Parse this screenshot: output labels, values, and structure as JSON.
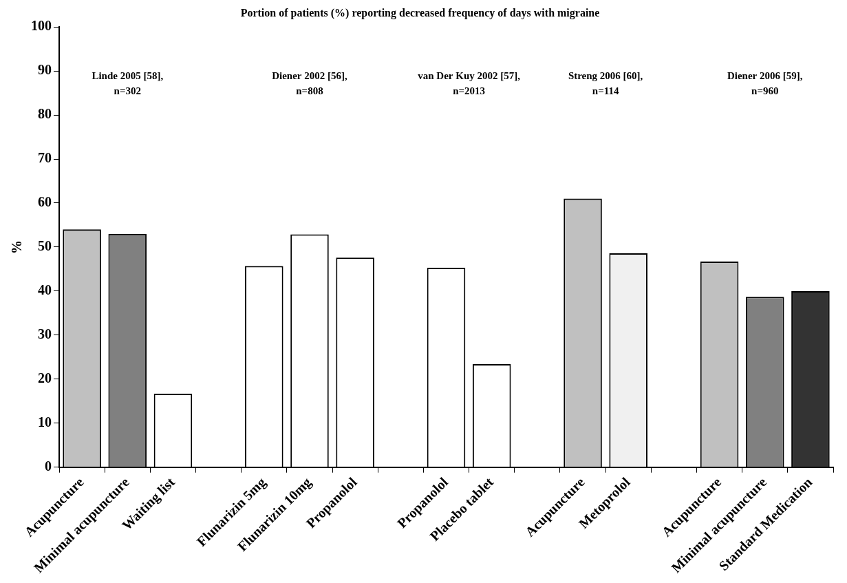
{
  "chart_data": {
    "type": "bar",
    "title": "Portion of patients (%) reporting decreased frequency of days with migraine",
    "y_label": "%",
    "categories": [
      "Acupuncture",
      "Minimal acupuncture",
      "Waiting list",
      null,
      "Flunarizin 5mg",
      "Flunarizin 10mg",
      "Propanolol",
      null,
      "Propanolol",
      "Placebo tablet",
      null,
      "Acupuncture",
      "Metoprolol",
      null,
      "Acupuncture",
      "Minimal acupuncture",
      "Standard Medication"
    ],
    "values": [
      54,
      53,
      16.7,
      null,
      45.7,
      52.9,
      47.6,
      null,
      45.3,
      23.4,
      null,
      61,
      48.6,
      null,
      46.7,
      38.7,
      40
    ],
    "colors": [
      "#c0c0c0",
      "#808080",
      "#ffffff",
      null,
      "#ffffff",
      "#ffffff",
      "#ffffff",
      null,
      "#ffffff",
      "#ffffff",
      null,
      "#c0c0c0",
      "#f0f0f0",
      null,
      "#c0c0c0",
      "#808080",
      "#333333"
    ],
    "annotations": [
      "Linde 2005 [58],\nn=302",
      "Diener 2002 [56],\nn=808",
      "van Der Kuy 2002 [57],\nn=2013",
      "Streng 2006 [60],\nn=114",
      "Diener 2006 [59],\nn=960"
    ],
    "ylim": [
      0,
      100
    ],
    "yticks": [
      0,
      10,
      20,
      30,
      40,
      50,
      60,
      70,
      80,
      90,
      100
    ],
    "grid": false
  }
}
